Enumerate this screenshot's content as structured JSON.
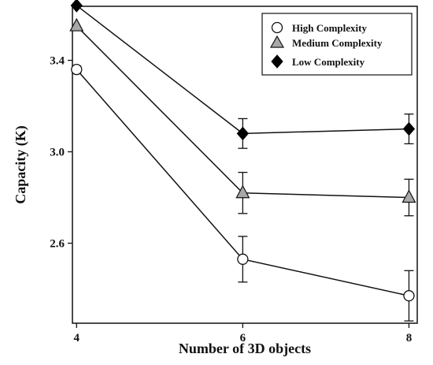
{
  "chart_data": {
    "type": "line",
    "title": "",
    "xlabel": "Number of 3D objects",
    "ylabel": "Capacity (K)",
    "x": [
      4,
      6,
      8
    ],
    "xlim": [
      3.95,
      8.1
    ],
    "ylim": [
      2.25,
      3.6364
    ],
    "xticks": [
      "4",
      "6",
      "8"
    ],
    "yticks": [
      "2.6",
      "3.0",
      "3.4"
    ],
    "legend_position": "top-right",
    "series": [
      {
        "name": "High Complexity",
        "marker": "circle",
        "fill": "#ffffff",
        "values": [
          3.36,
          2.53,
          2.37
        ],
        "err": [
          0.015,
          0.1,
          0.11
        ]
      },
      {
        "name": "Medium Complexity",
        "marker": "triangle",
        "fill": "#a8a8a8",
        "values": [
          3.55,
          2.82,
          2.8
        ],
        "err": [
          0.0,
          0.09,
          0.08
        ]
      },
      {
        "name": "Low Complexity",
        "marker": "diamond",
        "fill": "#000000",
        "values": [
          3.64,
          3.08,
          3.1
        ],
        "err": [
          0.0,
          0.065,
          0.065
        ]
      }
    ]
  }
}
